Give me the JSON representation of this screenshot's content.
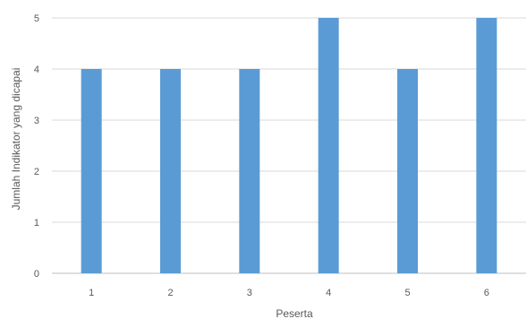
{
  "chart_data": {
    "type": "bar",
    "categories": [
      "1",
      "2",
      "3",
      "4",
      "5",
      "6"
    ],
    "values": [
      4,
      4,
      4,
      5,
      4,
      5
    ],
    "title": "",
    "xlabel": "Peserta",
    "ylabel": "Jumlah Indikator yang dicapai",
    "ylim": [
      0,
      5
    ],
    "yticks": [
      0,
      1,
      2,
      3,
      4,
      5
    ],
    "grid": true,
    "legend": "none",
    "bar_color": "#5b9bd5"
  }
}
